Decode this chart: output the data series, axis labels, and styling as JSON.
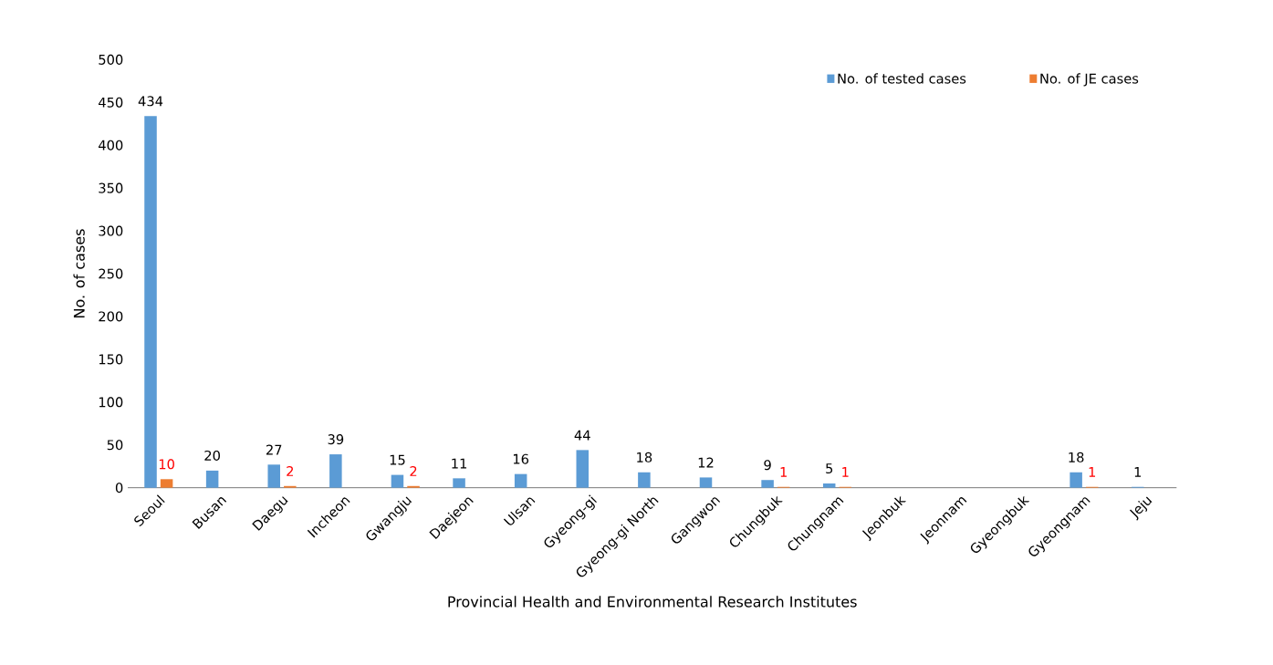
{
  "chart_data": {
    "type": "bar",
    "xlabel": "Provincial Health and Environmental Research Institutes",
    "ylabel": "No. of cases",
    "categories": [
      "Seoul",
      "Busan",
      "Daegu",
      "Incheon",
      "Gwangju",
      "Daejeon",
      "Ulsan",
      "Gyeong-gi",
      "Gyeong-gi North",
      "Gangwon",
      "Chungbuk",
      "Chungnam",
      "Jeonbuk",
      "Jeonnam",
      "Gyeongbuk",
      "Gyeongnam",
      "Jeju"
    ],
    "series": [
      {
        "name": "No. of tested cases",
        "color": "#5b9bd5",
        "values": [
          434,
          20,
          27,
          39,
          15,
          11,
          16,
          44,
          18,
          12,
          9,
          5,
          null,
          null,
          null,
          18,
          1
        ],
        "value_labels": [
          "434",
          "20",
          "27",
          "39",
          "15",
          "11",
          "16",
          "44",
          "18",
          "12",
          "9",
          "5",
          null,
          null,
          null,
          "18",
          "1"
        ]
      },
      {
        "name": "No. of JE cases",
        "color": "#ed7d31",
        "values": [
          10,
          null,
          2,
          null,
          2,
          null,
          null,
          null,
          null,
          null,
          1,
          1,
          null,
          null,
          null,
          1,
          null
        ],
        "value_labels": [
          "10",
          null,
          "2",
          null,
          "2",
          null,
          null,
          null,
          null,
          null,
          "1",
          "1",
          null,
          null,
          null,
          "1",
          null
        ]
      }
    ],
    "ylim": [
      0,
      500
    ],
    "yticks": [
      0,
      50,
      100,
      150,
      200,
      250,
      300,
      350,
      400,
      450,
      500
    ],
    "grid": false,
    "legend": "top right"
  }
}
